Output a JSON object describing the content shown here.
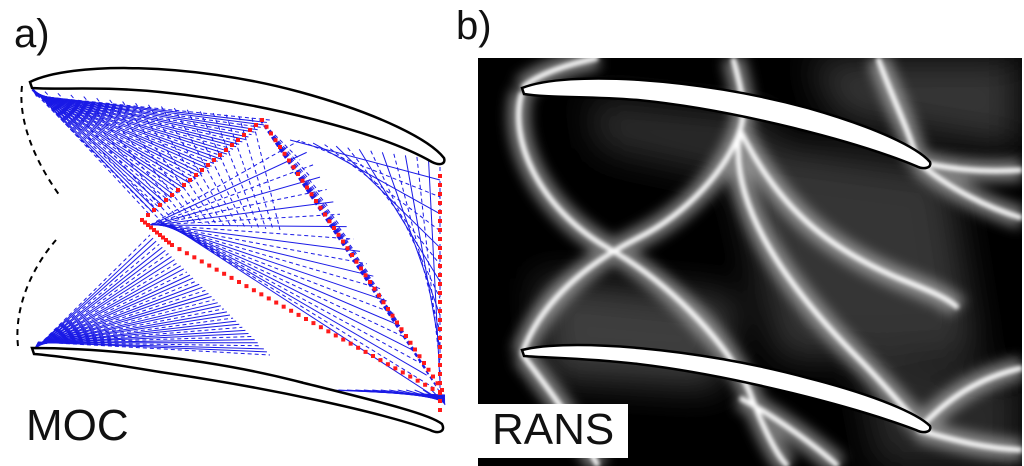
{
  "panels": {
    "left": {
      "tag": "a)",
      "method": "MOC"
    },
    "right": {
      "tag": "b)",
      "method": "RANS"
    }
  },
  "colors": {
    "characteristics": "#1a1ae6",
    "shock_markers": "#ff1a1a",
    "blade_outline": "#000000",
    "rans_background": "#000000",
    "rans_waves": "#ffffff"
  }
}
